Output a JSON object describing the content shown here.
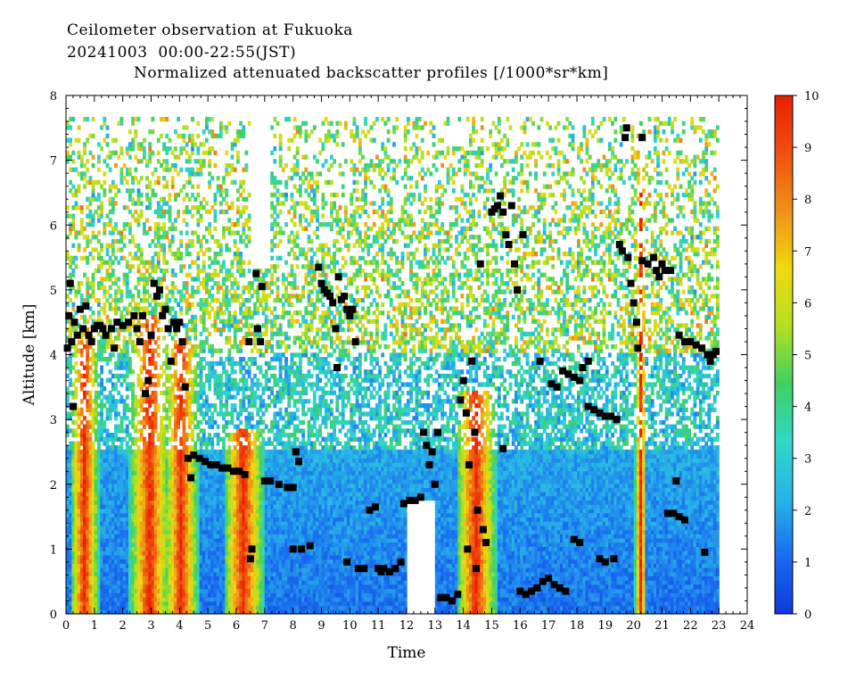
{
  "header": {
    "line1": "Ceilometer observation at Fukuoka",
    "line2": "20241003  00:00-22:55(JST)"
  },
  "chart_data": {
    "type": "heatmap",
    "title": "Normalized attenuated backscatter profiles [/1000*sr*km]",
    "xlabel": "Time",
    "ylabel": "Altitude [km]",
    "xlim": [
      0,
      24
    ],
    "ylim": [
      0,
      8
    ],
    "x_ticks": [
      "0",
      "1",
      "2",
      "3",
      "4",
      "5",
      "6",
      "7",
      "8",
      "9",
      "10",
      "11",
      "12",
      "13",
      "14",
      "15",
      "16",
      "17",
      "18",
      "19",
      "20",
      "21",
      "22",
      "23",
      "24"
    ],
    "y_ticks": [
      "0",
      "1",
      "2",
      "3",
      "4",
      "5",
      "6",
      "7",
      "8"
    ],
    "data_extent": {
      "time_start": 0.0,
      "time_end": 22.92,
      "max_altitude_km": 7.65
    },
    "colorbar": {
      "range": [
        0,
        10
      ],
      "ticks": [
        "0",
        "1",
        "2",
        "3",
        "4",
        "5",
        "6",
        "7",
        "8",
        "9",
        "10"
      ],
      "stops": [
        "#1038d8",
        "#1a6cf0",
        "#28b4e6",
        "#30d8c8",
        "#40d060",
        "#b4e020",
        "#f0d810",
        "#f09018",
        "#f05010",
        "#e82000"
      ]
    },
    "cloud_base": [
      {
        "t": 0.05,
        "h": 4.1
      },
      {
        "t": 0.1,
        "h": 4.6
      },
      {
        "t": 0.15,
        "h": 5.1
      },
      {
        "t": 0.2,
        "h": 4.2
      },
      {
        "t": 0.25,
        "h": 3.2
      },
      {
        "t": 0.3,
        "h": 4.5
      },
      {
        "t": 0.4,
        "h": 4.3
      },
      {
        "t": 0.5,
        "h": 4.7
      },
      {
        "t": 0.6,
        "h": 4.4
      },
      {
        "t": 0.7,
        "h": 4.75
      },
      {
        "t": 0.8,
        "h": 4.3
      },
      {
        "t": 0.9,
        "h": 4.2
      },
      {
        "t": 1.0,
        "h": 4.4
      },
      {
        "t": 1.1,
        "h": 4.45
      },
      {
        "t": 1.2,
        "h": 4.45
      },
      {
        "t": 1.3,
        "h": 4.4
      },
      {
        "t": 1.4,
        "h": 4.3
      },
      {
        "t": 1.6,
        "h": 4.4
      },
      {
        "t": 1.7,
        "h": 4.1
      },
      {
        "t": 1.8,
        "h": 4.5
      },
      {
        "t": 2.0,
        "h": 4.45
      },
      {
        "t": 2.2,
        "h": 4.5
      },
      {
        "t": 2.4,
        "h": 4.6
      },
      {
        "t": 2.5,
        "h": 4.4
      },
      {
        "t": 2.6,
        "h": 4.2
      },
      {
        "t": 2.7,
        "h": 4.6
      },
      {
        "t": 2.8,
        "h": 3.4
      },
      {
        "t": 2.9,
        "h": 3.6
      },
      {
        "t": 3.0,
        "h": 4.3
      },
      {
        "t": 3.1,
        "h": 5.1
      },
      {
        "t": 3.2,
        "h": 4.9
      },
      {
        "t": 3.3,
        "h": 5.0
      },
      {
        "t": 3.4,
        "h": 4.6
      },
      {
        "t": 3.5,
        "h": 4.7
      },
      {
        "t": 3.6,
        "h": 4.4
      },
      {
        "t": 3.7,
        "h": 3.9
      },
      {
        "t": 3.8,
        "h": 4.5
      },
      {
        "t": 3.9,
        "h": 4.4
      },
      {
        "t": 4.0,
        "h": 4.5
      },
      {
        "t": 4.1,
        "h": 4.2
      },
      {
        "t": 4.2,
        "h": 3.5
      },
      {
        "t": 4.3,
        "h": 2.4
      },
      {
        "t": 4.4,
        "h": 2.1
      },
      {
        "t": 4.5,
        "h": 2.45
      },
      {
        "t": 4.7,
        "h": 2.4
      },
      {
        "t": 4.9,
        "h": 2.35
      },
      {
        "t": 5.1,
        "h": 2.3
      },
      {
        "t": 5.3,
        "h": 2.3
      },
      {
        "t": 5.5,
        "h": 2.25
      },
      {
        "t": 5.7,
        "h": 2.25
      },
      {
        "t": 5.9,
        "h": 2.2
      },
      {
        "t": 6.1,
        "h": 2.2
      },
      {
        "t": 6.3,
        "h": 2.15
      },
      {
        "t": 6.45,
        "h": 4.2
      },
      {
        "t": 6.5,
        "h": 0.85
      },
      {
        "t": 6.55,
        "h": 1.0
      },
      {
        "t": 6.7,
        "h": 5.25
      },
      {
        "t": 6.75,
        "h": 4.4
      },
      {
        "t": 6.85,
        "h": 4.2
      },
      {
        "t": 6.9,
        "h": 5.05
      },
      {
        "t": 7.0,
        "h": 2.05
      },
      {
        "t": 7.2,
        "h": 2.05
      },
      {
        "t": 7.5,
        "h": 2.0
      },
      {
        "t": 7.8,
        "h": 1.95
      },
      {
        "t": 8.0,
        "h": 1.95
      },
      {
        "t": 8.1,
        "h": 2.5
      },
      {
        "t": 8.2,
        "h": 2.35
      },
      {
        "t": 8.0,
        "h": 1.0
      },
      {
        "t": 8.3,
        "h": 1.0
      },
      {
        "t": 8.6,
        "h": 1.05
      },
      {
        "t": 8.9,
        "h": 5.35
      },
      {
        "t": 9.0,
        "h": 5.1
      },
      {
        "t": 9.1,
        "h": 5.0
      },
      {
        "t": 9.2,
        "h": 4.95
      },
      {
        "t": 9.3,
        "h": 4.9
      },
      {
        "t": 9.4,
        "h": 4.8
      },
      {
        "t": 9.5,
        "h": 4.4
      },
      {
        "t": 9.55,
        "h": 3.8
      },
      {
        "t": 9.6,
        "h": 5.2
      },
      {
        "t": 9.7,
        "h": 4.85
      },
      {
        "t": 9.8,
        "h": 4.9
      },
      {
        "t": 9.9,
        "h": 4.7
      },
      {
        "t": 10.0,
        "h": 4.6
      },
      {
        "t": 10.1,
        "h": 4.7
      },
      {
        "t": 10.2,
        "h": 4.2
      },
      {
        "t": 9.9,
        "h": 0.8
      },
      {
        "t": 10.3,
        "h": 0.7
      },
      {
        "t": 10.5,
        "h": 0.7
      },
      {
        "t": 10.7,
        "h": 1.6
      },
      {
        "t": 10.9,
        "h": 1.65
      },
      {
        "t": 11.0,
        "h": 0.7
      },
      {
        "t": 11.1,
        "h": 0.65
      },
      {
        "t": 11.2,
        "h": 0.7
      },
      {
        "t": 11.4,
        "h": 0.65
      },
      {
        "t": 11.6,
        "h": 0.7
      },
      {
        "t": 11.8,
        "h": 0.8
      },
      {
        "t": 11.9,
        "h": 1.7
      },
      {
        "t": 12.1,
        "h": 1.75
      },
      {
        "t": 12.3,
        "h": 1.75
      },
      {
        "t": 12.5,
        "h": 1.8
      },
      {
        "t": 12.6,
        "h": 2.8
      },
      {
        "t": 12.7,
        "h": 2.6
      },
      {
        "t": 12.8,
        "h": 2.3
      },
      {
        "t": 12.9,
        "h": 2.5
      },
      {
        "t": 13.0,
        "h": 2.0
      },
      {
        "t": 13.1,
        "h": 2.8
      },
      {
        "t": 13.2,
        "h": 0.25
      },
      {
        "t": 13.4,
        "h": 0.25
      },
      {
        "t": 13.6,
        "h": 0.2
      },
      {
        "t": 13.8,
        "h": 0.3
      },
      {
        "t": 13.9,
        "h": 3.3
      },
      {
        "t": 14.0,
        "h": 3.6
      },
      {
        "t": 14.1,
        "h": 3.1
      },
      {
        "t": 14.15,
        "h": 1.0
      },
      {
        "t": 14.2,
        "h": 2.3
      },
      {
        "t": 14.3,
        "h": 3.9
      },
      {
        "t": 14.4,
        "h": 2.8
      },
      {
        "t": 14.45,
        "h": 0.7
      },
      {
        "t": 14.5,
        "h": 1.6
      },
      {
        "t": 14.6,
        "h": 5.4
      },
      {
        "t": 14.7,
        "h": 1.3
      },
      {
        "t": 14.8,
        "h": 1.1
      },
      {
        "t": 15.0,
        "h": 6.2
      },
      {
        "t": 15.1,
        "h": 6.25
      },
      {
        "t": 15.2,
        "h": 6.3
      },
      {
        "t": 15.3,
        "h": 6.45
      },
      {
        "t": 15.4,
        "h": 6.2
      },
      {
        "t": 15.5,
        "h": 5.85
      },
      {
        "t": 15.6,
        "h": 5.7
      },
      {
        "t": 15.7,
        "h": 6.3
      },
      {
        "t": 15.8,
        "h": 5.4
      },
      {
        "t": 15.9,
        "h": 5.0
      },
      {
        "t": 15.4,
        "h": 2.55
      },
      {
        "t": 16.1,
        "h": 5.85
      },
      {
        "t": 16.0,
        "h": 0.35
      },
      {
        "t": 16.2,
        "h": 0.3
      },
      {
        "t": 16.4,
        "h": 0.35
      },
      {
        "t": 16.6,
        "h": 0.4
      },
      {
        "t": 16.8,
        "h": 0.5
      },
      {
        "t": 17.0,
        "h": 0.55
      },
      {
        "t": 17.2,
        "h": 0.45
      },
      {
        "t": 17.4,
        "h": 0.4
      },
      {
        "t": 17.6,
        "h": 0.35
      },
      {
        "t": 16.7,
        "h": 3.9
      },
      {
        "t": 17.1,
        "h": 3.55
      },
      {
        "t": 17.3,
        "h": 3.5
      },
      {
        "t": 17.5,
        "h": 3.75
      },
      {
        "t": 17.7,
        "h": 3.7
      },
      {
        "t": 17.9,
        "h": 3.65
      },
      {
        "t": 18.1,
        "h": 3.6
      },
      {
        "t": 18.2,
        "h": 3.8
      },
      {
        "t": 18.4,
        "h": 3.9
      },
      {
        "t": 17.9,
        "h": 1.15
      },
      {
        "t": 18.1,
        "h": 1.1
      },
      {
        "t": 18.4,
        "h": 3.2
      },
      {
        "t": 18.6,
        "h": 3.15
      },
      {
        "t": 18.8,
        "h": 3.1
      },
      {
        "t": 19.0,
        "h": 3.05
      },
      {
        "t": 19.2,
        "h": 3.05
      },
      {
        "t": 19.4,
        "h": 3.0
      },
      {
        "t": 18.8,
        "h": 0.85
      },
      {
        "t": 19.0,
        "h": 0.8
      },
      {
        "t": 19.3,
        "h": 0.85
      },
      {
        "t": 19.5,
        "h": 5.7
      },
      {
        "t": 19.6,
        "h": 5.6
      },
      {
        "t": 19.7,
        "h": 7.35
      },
      {
        "t": 19.75,
        "h": 7.5
      },
      {
        "t": 19.8,
        "h": 5.5
      },
      {
        "t": 19.9,
        "h": 5.1
      },
      {
        "t": 20.0,
        "h": 4.8
      },
      {
        "t": 20.1,
        "h": 4.5
      },
      {
        "t": 20.15,
        "h": 4.1
      },
      {
        "t": 20.3,
        "h": 7.35
      },
      {
        "t": 20.3,
        "h": 5.45
      },
      {
        "t": 20.5,
        "h": 5.4
      },
      {
        "t": 20.7,
        "h": 5.5
      },
      {
        "t": 20.8,
        "h": 5.3
      },
      {
        "t": 20.9,
        "h": 5.2
      },
      {
        "t": 21.0,
        "h": 5.4
      },
      {
        "t": 21.1,
        "h": 5.3
      },
      {
        "t": 21.3,
        "h": 5.3
      },
      {
        "t": 21.2,
        "h": 1.55
      },
      {
        "t": 21.4,
        "h": 1.55
      },
      {
        "t": 21.6,
        "h": 1.5
      },
      {
        "t": 21.5,
        "h": 2.05
      },
      {
        "t": 21.8,
        "h": 1.45
      },
      {
        "t": 21.6,
        "h": 4.3
      },
      {
        "t": 21.8,
        "h": 4.2
      },
      {
        "t": 22.0,
        "h": 4.2
      },
      {
        "t": 22.2,
        "h": 4.15
      },
      {
        "t": 22.4,
        "h": 4.1
      },
      {
        "t": 22.5,
        "h": 0.95
      },
      {
        "t": 22.6,
        "h": 4.0
      },
      {
        "t": 22.7,
        "h": 3.9
      },
      {
        "t": 22.8,
        "h": 4.0
      },
      {
        "t": 22.9,
        "h": 4.05
      }
    ]
  }
}
